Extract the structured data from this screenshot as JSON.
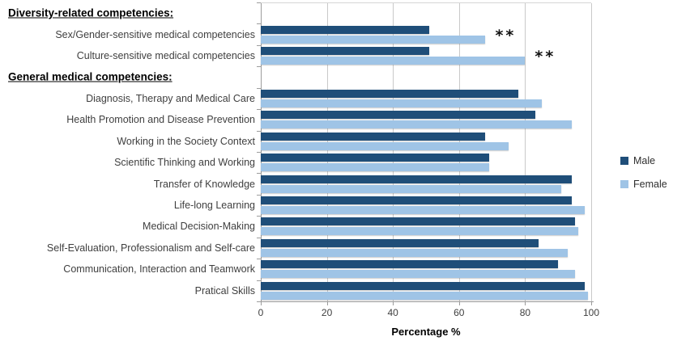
{
  "chart_data": {
    "type": "bar",
    "orientation": "horizontal",
    "title": "",
    "xlabel": "Percentage %",
    "ylabel": "",
    "xlim": [
      0,
      100
    ],
    "xticks": [
      0,
      20,
      40,
      60,
      80,
      100
    ],
    "grid": "vertical",
    "legend_position": "right",
    "series": [
      {
        "name": "Male",
        "color": "#1F4E79"
      },
      {
        "name": "Female",
        "color": "#9FC4E6"
      }
    ],
    "rows": [
      {
        "type": "header",
        "text": "Diversity-related competencies:"
      },
      {
        "type": "bars",
        "category": "Sex/Gender-sensitive medical competencies",
        "values": [
          51,
          68
        ],
        "annotation": "**"
      },
      {
        "type": "bars",
        "category": "Culture-sensitive medical competencies",
        "values": [
          51,
          80
        ],
        "annotation": "**"
      },
      {
        "type": "header",
        "text": "General medical competencies:"
      },
      {
        "type": "bars",
        "category": "Diagnosis, Therapy and Medical Care",
        "values": [
          78,
          85
        ]
      },
      {
        "type": "bars",
        "category": "Health Promotion and Disease Prevention",
        "values": [
          83,
          94
        ]
      },
      {
        "type": "bars",
        "category": "Working in the Society Context",
        "values": [
          68,
          75
        ]
      },
      {
        "type": "bars",
        "category": "Scientific Thinking and Working",
        "values": [
          69,
          69
        ]
      },
      {
        "type": "bars",
        "category": "Transfer of Knowledge",
        "values": [
          94,
          91
        ]
      },
      {
        "type": "bars",
        "category": "Life-long Learning",
        "values": [
          94,
          98
        ]
      },
      {
        "type": "bars",
        "category": "Medical Decision-Making",
        "values": [
          95,
          96
        ]
      },
      {
        "type": "bars",
        "category": "Self-Evaluation, Professionalism and Self-care",
        "values": [
          84,
          93
        ]
      },
      {
        "type": "bars",
        "category": "Communication, Interaction and Teamwork",
        "values": [
          90,
          95
        ]
      },
      {
        "type": "bars",
        "category": "Pratical Skills",
        "values": [
          98,
          99
        ]
      }
    ],
    "colors": {
      "gridline": "#c9c9c9",
      "axis": "#9c9c9c",
      "label_text": "#3f3f3f"
    }
  }
}
